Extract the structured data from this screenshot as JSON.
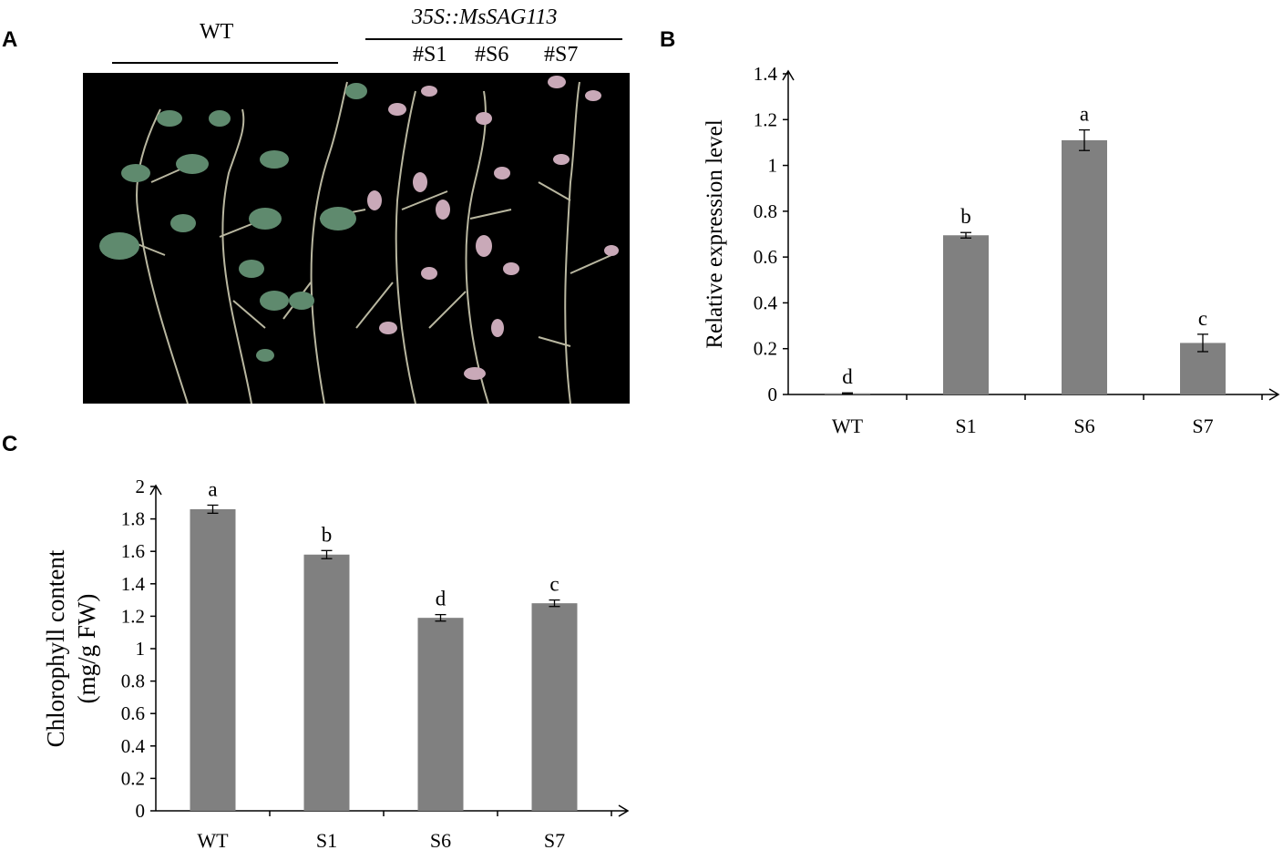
{
  "panels": {
    "a": "A",
    "b": "B",
    "c": "C"
  },
  "photo": {
    "wt_label": "WT",
    "transgenic_label": "35S::MsSAG113",
    "lines": [
      "#S1",
      "#S6",
      "#S7"
    ]
  },
  "chart_data": [
    {
      "type": "bar",
      "panel": "B",
      "categories": [
        "WT",
        "S1",
        "S6",
        "S7"
      ],
      "values": [
        0.005,
        0.695,
        1.11,
        0.225
      ],
      "errors": [
        0.002,
        0.012,
        0.045,
        0.038
      ],
      "significance": [
        "d",
        "b",
        "a",
        "c"
      ],
      "ylabel": "Relative expression level",
      "xlabel": "",
      "ylim": [
        0,
        1.4
      ],
      "yticks": [
        "0",
        "0.2",
        "0.4",
        "0.6",
        "0.8",
        "1",
        "1.2",
        "1.4"
      ],
      "bar_color": "#808080",
      "grid": false
    },
    {
      "type": "bar",
      "panel": "C",
      "categories": [
        "WT",
        "S1",
        "S6",
        "S7"
      ],
      "values": [
        1.86,
        1.58,
        1.19,
        1.28
      ],
      "errors": [
        0.025,
        0.025,
        0.02,
        0.02
      ],
      "significance": [
        "a",
        "b",
        "d",
        "c"
      ],
      "ylabel_lines": [
        "Chlorophyll content",
        "(mg/g FW)"
      ],
      "xlabel": "",
      "ylim": [
        0,
        2
      ],
      "yticks": [
        "0",
        "0.2",
        "0.4",
        "0.6",
        "0.8",
        "1",
        "1.2",
        "1.4",
        "1.6",
        "1.8",
        "2"
      ],
      "bar_color": "#808080",
      "grid": false
    }
  ]
}
